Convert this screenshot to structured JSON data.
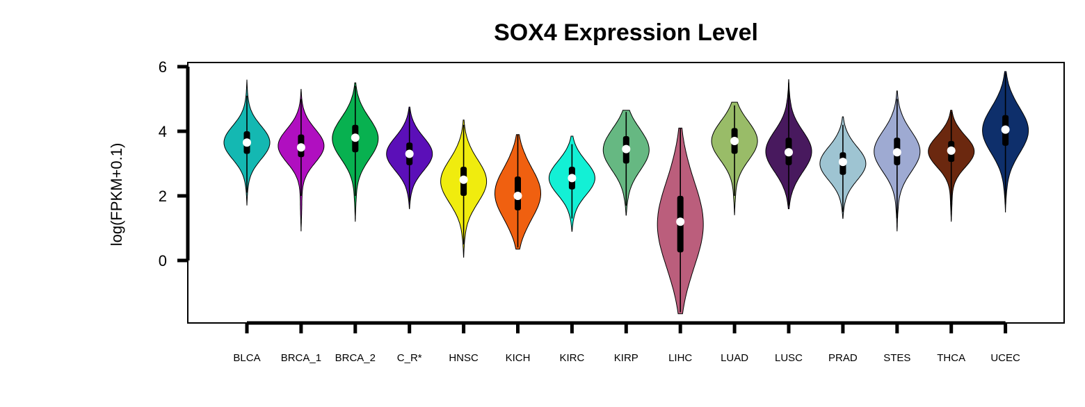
{
  "chart_data": {
    "type": "violin",
    "title": "SOX4 Expression Level",
    "xlabel": "",
    "ylabel": "log(FPKM+0.1)",
    "yticks": [
      0,
      2,
      4,
      6
    ],
    "ylim": [
      -1.9,
      6.15
    ],
    "grid": false,
    "legend": "none",
    "categories": [
      "BLCA",
      "BRCA_1",
      "BRCA_2",
      "C_R*",
      "HNSC",
      "KICH",
      "KIRC",
      "KIRP",
      "LIHC",
      "LUAD",
      "LUSC",
      "PRAD",
      "STES",
      "THCA",
      "UCEC"
    ],
    "series": [
      {
        "category": "BLCA",
        "color": "#14b8b2",
        "min": 1.7,
        "max": 5.6,
        "q1": 3.3,
        "median": 3.65,
        "q3": 4.0,
        "whisker_low": 2.1,
        "whisker_high": 5.1
      },
      {
        "category": "BRCA_1",
        "color": "#b00fc0",
        "min": 0.9,
        "max": 5.3,
        "q1": 3.2,
        "median": 3.5,
        "q3": 3.9,
        "whisker_low": 2.0,
        "whisker_high": 5.0
      },
      {
        "category": "BRCA_2",
        "color": "#08b150",
        "min": 1.2,
        "max": 5.5,
        "q1": 3.35,
        "median": 3.8,
        "q3": 4.2,
        "whisker_low": 2.0,
        "whisker_high": 5.4
      },
      {
        "category": "C_R*",
        "color": "#5b0fb8",
        "min": 1.6,
        "max": 4.75,
        "q1": 2.95,
        "median": 3.3,
        "q3": 3.65,
        "whisker_low": 1.8,
        "whisker_high": 4.7
      },
      {
        "category": "HNSC",
        "color": "#f0ec0e",
        "min": 0.1,
        "max": 4.35,
        "q1": 2.0,
        "median": 2.5,
        "q3": 2.9,
        "whisker_low": 0.5,
        "whisker_high": 4.2
      },
      {
        "category": "KICH",
        "color": "#f06010",
        "min": 0.35,
        "max": 3.9,
        "q1": 1.55,
        "median": 2.0,
        "q3": 2.6,
        "whisker_low": 0.4,
        "whisker_high": 3.9
      },
      {
        "category": "KIRC",
        "color": "#13f0d5",
        "min": 0.9,
        "max": 3.85,
        "q1": 2.2,
        "median": 2.55,
        "q3": 2.9,
        "whisker_low": 1.3,
        "whisker_high": 3.6
      },
      {
        "category": "KIRP",
        "color": "#66b882",
        "min": 1.4,
        "max": 4.65,
        "q1": 3.0,
        "median": 3.45,
        "q3": 3.85,
        "whisker_low": 1.7,
        "whisker_high": 4.6
      },
      {
        "category": "LIHC",
        "color": "#bb5e7c",
        "min": -1.65,
        "max": 4.1,
        "q1": 0.25,
        "median": 1.2,
        "q3": 2.0,
        "whisker_low": -1.6,
        "whisker_high": 4.1
      },
      {
        "category": "LUAD",
        "color": "#99bc68",
        "min": 1.4,
        "max": 4.9,
        "q1": 3.3,
        "median": 3.7,
        "q3": 4.1,
        "whisker_low": 2.0,
        "whisker_high": 4.8
      },
      {
        "category": "LUSC",
        "color": "#48195e",
        "min": 1.6,
        "max": 5.6,
        "q1": 2.95,
        "median": 3.35,
        "q3": 3.8,
        "whisker_low": 1.7,
        "whisker_high": 5.5
      },
      {
        "category": "PRAD",
        "color": "#9ec4d2",
        "min": 1.3,
        "max": 4.45,
        "q1": 2.65,
        "median": 3.05,
        "q3": 3.35,
        "whisker_low": 1.5,
        "whisker_high": 4.2
      },
      {
        "category": "STES",
        "color": "#9eaad2",
        "min": 0.9,
        "max": 5.25,
        "q1": 2.95,
        "median": 3.35,
        "q3": 3.8,
        "whisker_low": 1.3,
        "whisker_high": 5.0
      },
      {
        "category": "THCA",
        "color": "#6b280f",
        "min": 1.2,
        "max": 4.65,
        "q1": 3.05,
        "median": 3.4,
        "q3": 3.7,
        "whisker_low": 1.5,
        "whisker_high": 4.6
      },
      {
        "category": "UCEC",
        "color": "#0e2f6b",
        "min": 1.5,
        "max": 5.85,
        "q1": 3.55,
        "median": 4.05,
        "q3": 4.5,
        "whisker_low": 1.8,
        "whisker_high": 5.8
      }
    ]
  }
}
